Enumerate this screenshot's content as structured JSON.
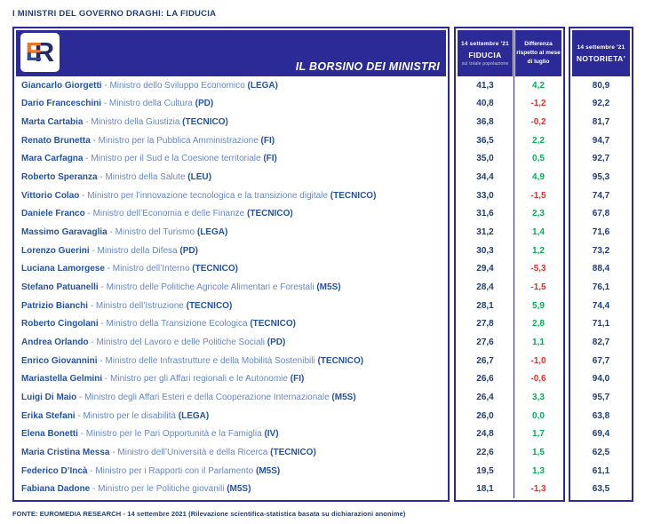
{
  "page_title": "I MINISTRI DEL GOVERNO DRAGHI: LA FIDUCIA",
  "banner": {
    "title": "IL BORSINO DEI MINISTRI",
    "logo": {
      "e": "E",
      "r": "R"
    }
  },
  "columns": {
    "fiducia": {
      "date": "14 settembre '21",
      "label": "FIDUCIA",
      "subtitle": "sul totale popolazione"
    },
    "differenza": {
      "lines": [
        "Differenza",
        "rispetto al mese",
        "di luglio"
      ]
    },
    "notorieta": {
      "date": "14 settembre '21",
      "label": "NOTORIETA'"
    }
  },
  "footer": "FONTE: EUROMEDIA RESEARCH - 14 settembre 2021 (Rilevazione scientifica-statistica basata su dichiarazioni anonime)",
  "colors": {
    "navy": "#2b2a96",
    "text_navy": "#223e72",
    "name_blue": "#2553a3",
    "role_blue": "#6787c5",
    "green": "#00b05a",
    "red": "#ee2b24",
    "logo_orange": "#ee7428",
    "logo_blue": "#2b4c9e",
    "logo_dark": "#232c66"
  },
  "chart_data": {
    "type": "table",
    "title": "I MINISTRI DEL GOVERNO DRAGHI: LA FIDUCIA",
    "columns": [
      "Ministro",
      "14 settembre '21 FIDUCIA sul totale popolazione",
      "Differenza rispetto al mese di luglio",
      "14 settembre '21 NOTORIETA'"
    ],
    "rows": [
      {
        "name": "Giancarlo Giorgetti",
        "role": "Ministro dello Sviluppo Economico",
        "party": "LEGA",
        "fiducia": "41,3",
        "differenza": "4,2",
        "notorieta": "80,9"
      },
      {
        "name": "Dario Franceschini",
        "role": "Ministro della Cultura",
        "party": "PD",
        "fiducia": "40,8",
        "differenza": "-1,2",
        "notorieta": "92,2"
      },
      {
        "name": "Marta Cartabia",
        "role": "Ministro della Giustizia",
        "party": "TECNICO",
        "fiducia": "36,8",
        "differenza": "-0,2",
        "notorieta": "81,7"
      },
      {
        "name": "Renato Brunetta",
        "role": "Ministro per la Pubblica Amministrazione",
        "party": "FI",
        "fiducia": "36,5",
        "differenza": "2,2",
        "notorieta": "94,7"
      },
      {
        "name": "Mara Carfagna",
        "role": "Ministro per il Sud e la Coesione territoriale",
        "party": "FI",
        "fiducia": "35,0",
        "differenza": "0,5",
        "notorieta": "92,7"
      },
      {
        "name": "Roberto Speranza",
        "role": "Ministro della Salute",
        "party": "LEU",
        "fiducia": "34,4",
        "differenza": "4,9",
        "notorieta": "95,3"
      },
      {
        "name": "Vittorio Colao",
        "role": "Ministro per l’innovazione tecnologica e la transizione digitale",
        "party": "TECNICO",
        "fiducia": "33,0",
        "differenza": "-1,5",
        "notorieta": "74,7"
      },
      {
        "name": "Daniele Franco",
        "role": "Ministro dell’Economia e delle Finanze",
        "party": "TECNICO",
        "fiducia": "31,6",
        "differenza": "2,3",
        "notorieta": "67,8"
      },
      {
        "name": "Massimo Garavaglia",
        "role": "Ministro del Turismo",
        "party": "LEGA",
        "fiducia": "31,2",
        "differenza": "1,4",
        "notorieta": "71,6"
      },
      {
        "name": "Lorenzo Guerini",
        "role": "Ministro della Difesa",
        "party": "PD",
        "fiducia": "30,3",
        "differenza": "1,2",
        "notorieta": "73,2"
      },
      {
        "name": "Luciana Lamorgese",
        "role": "Ministro dell’Interno",
        "party": "TECNICO",
        "fiducia": "29,4",
        "differenza": "-5,3",
        "notorieta": "88,4"
      },
      {
        "name": "Stefano Patuanelli",
        "role": "Ministro delle Politiche Agricole Alimentari e Forestali",
        "party": "M5S",
        "fiducia": "28,4",
        "differenza": "-1,5",
        "notorieta": "76,1"
      },
      {
        "name": "Patrizio Bianchi",
        "role": "Ministro dell’Istruzione",
        "party": "TECNICO",
        "fiducia": "28,1",
        "differenza": "5,9",
        "notorieta": "74,4"
      },
      {
        "name": "Roberto Cingolani",
        "role": "Ministro della Transizione Ecologica",
        "party": "TECNICO",
        "fiducia": "27,8",
        "differenza": "2,8",
        "notorieta": "71,1"
      },
      {
        "name": "Andrea Orlando",
        "role": "Ministro del Lavoro e delle Politiche Sociali",
        "party": "PD",
        "fiducia": "27,6",
        "differenza": "1,1",
        "notorieta": "82,7"
      },
      {
        "name": "Enrico Giovannini",
        "role": "Ministro delle Infrastrutture e della Mobilità Sostenibili",
        "party": "TECNICO",
        "fiducia": "26,7",
        "differenza": "-1,0",
        "notorieta": "67,7"
      },
      {
        "name": "Mariastella Gelmini",
        "role": "Ministro per gli Affari regionali e le Autonomie",
        "party": "FI",
        "fiducia": "26,6",
        "differenza": "-0,6",
        "notorieta": "94,0"
      },
      {
        "name": "Luigi Di Maio",
        "role": "Ministro degli Affari Esteri e della Cooperazione Internazionale",
        "party": "M5S",
        "fiducia": "26,4",
        "differenza": "3,3",
        "notorieta": "95,7"
      },
      {
        "name": "Erika Stefani",
        "role": "Ministro per le disabilità",
        "party": "LEGA",
        "fiducia": "26,0",
        "differenza": "0,0",
        "notorieta": "63,8"
      },
      {
        "name": "Elena Bonetti",
        "role": "Ministro per le Pari Opportunità e la Famiglia",
        "party": "IV",
        "fiducia": "24,8",
        "differenza": "1,7",
        "notorieta": "69,4"
      },
      {
        "name": "Maria Cristina Messa",
        "role": "Ministro dell’Università e della Ricerca",
        "party": "TECNICO",
        "fiducia": "22,6",
        "differenza": "1,5",
        "notorieta": "62,5"
      },
      {
        "name": "Federico D’Incà",
        "role": "Ministro per i Rapporti con il Parlamento",
        "party": "M5S",
        "fiducia": "19,5",
        "differenza": "1,3",
        "notorieta": "61,1"
      },
      {
        "name": "Fabiana Dadone",
        "role": "Ministro per le Politiche giovanili",
        "party": "M5S",
        "fiducia": "18,1",
        "differenza": "-1,3",
        "notorieta": "63,5"
      }
    ]
  }
}
